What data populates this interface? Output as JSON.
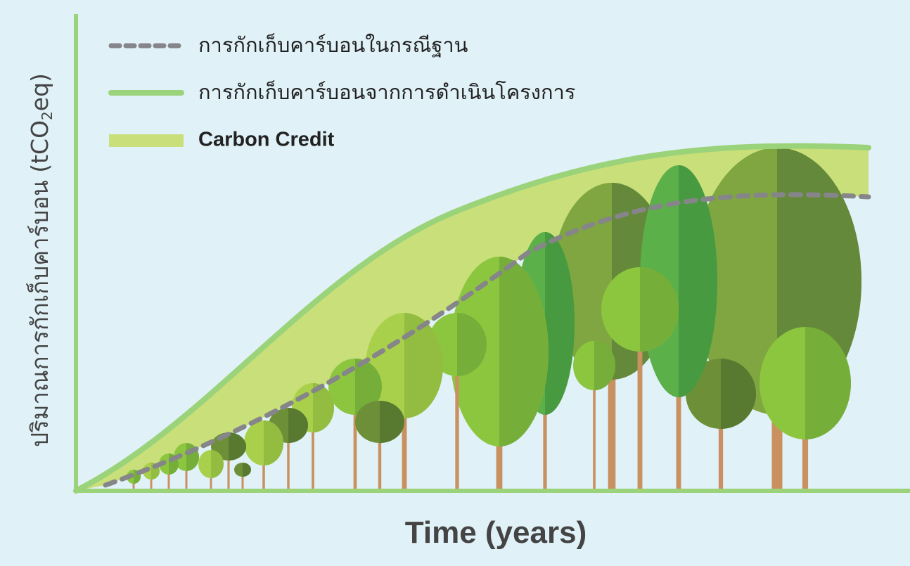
{
  "y_axis": {
    "label": "ปริมาณการกักเก็บคาร์บอน (tCO",
    "subscript": "2",
    "suffix": "eq)"
  },
  "x_axis": {
    "label": "Time (years)"
  },
  "legend": [
    "การกักเก็บคาร์บอนในกรณีฐาน",
    "การกักเก็บคาร์บอนจากการดำเนินโครงการ",
    "Carbon Credit"
  ]
}
